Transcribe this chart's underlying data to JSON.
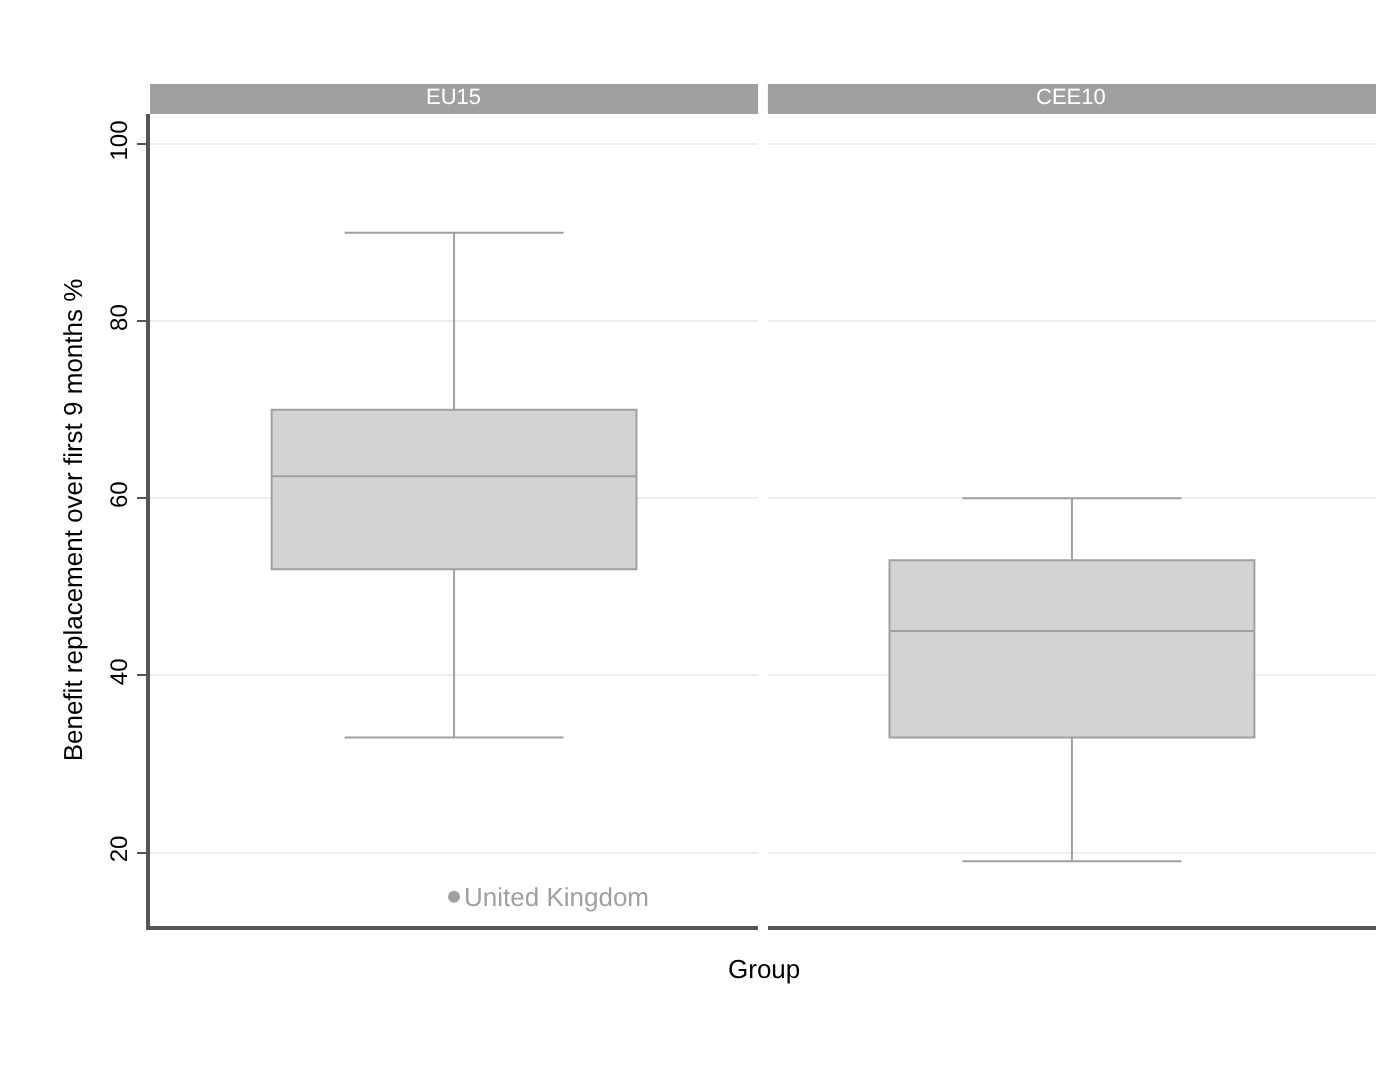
{
  "chart_data": {
    "type": "box",
    "categories": [
      "EU15",
      "CEE10"
    ],
    "xlabel": "Group",
    "ylabel": "Benefit replacement over first 9 months %",
    "color": "#d3d3d3",
    "boxes": [
      {
        "low": 33,
        "q1": 52,
        "median": 62.5,
        "q3": 70,
        "high": 90,
        "outliers": [
          15
        ]
      },
      {
        "low": 19,
        "q1": 33,
        "median": 45,
        "q3": 53,
        "high": 60
      }
    ],
    "annotations": [
      "United Kingdom"
    ],
    "ylim": [
      11.7,
      103.4
    ],
    "yticks": [
      20,
      40,
      60,
      80,
      100
    ],
    "grid": "y"
  }
}
